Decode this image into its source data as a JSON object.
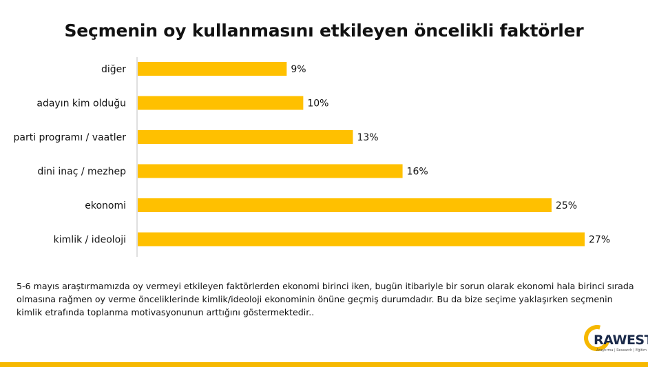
{
  "chart_data": {
    "type": "bar",
    "orientation": "horizontal",
    "title": "Seçmenin oy kullanmasını etkileyen öncelikli faktörler",
    "categories": [
      "diğer",
      "adayın kim olduğu",
      "parti programı / vaatler",
      "dini inaç / mezhep",
      "ekonomi",
      "kimlik / ideoloji"
    ],
    "values": [
      9,
      10,
      13,
      16,
      25,
      27
    ],
    "value_labels": [
      "9%",
      "10%",
      "13%",
      "16%",
      "25%",
      "27%"
    ],
    "xlim": [
      0,
      27
    ],
    "bar_color": "#FFC000",
    "grid": false
  },
  "note": "5-6 mayıs araştırmamızda oy vermeyi etkileyen faktörlerden ekonomi birinci iken, bugün itibariyle bir sorun olarak ekonomi hala birinci sırada olmasına rağmen oy verme önceliklerinde kimlik/ideoloji ekonominin önüne geçmiş durumdadır. Bu da bize seçime yaklaşırken seçmenin kimlik etrafında toplanma motivasyonunun arttığını göstermektedir..",
  "logo": {
    "name": "RAWEST",
    "tagline": "Araştırma | Research | Eğitim",
    "color": "#F6B800"
  }
}
